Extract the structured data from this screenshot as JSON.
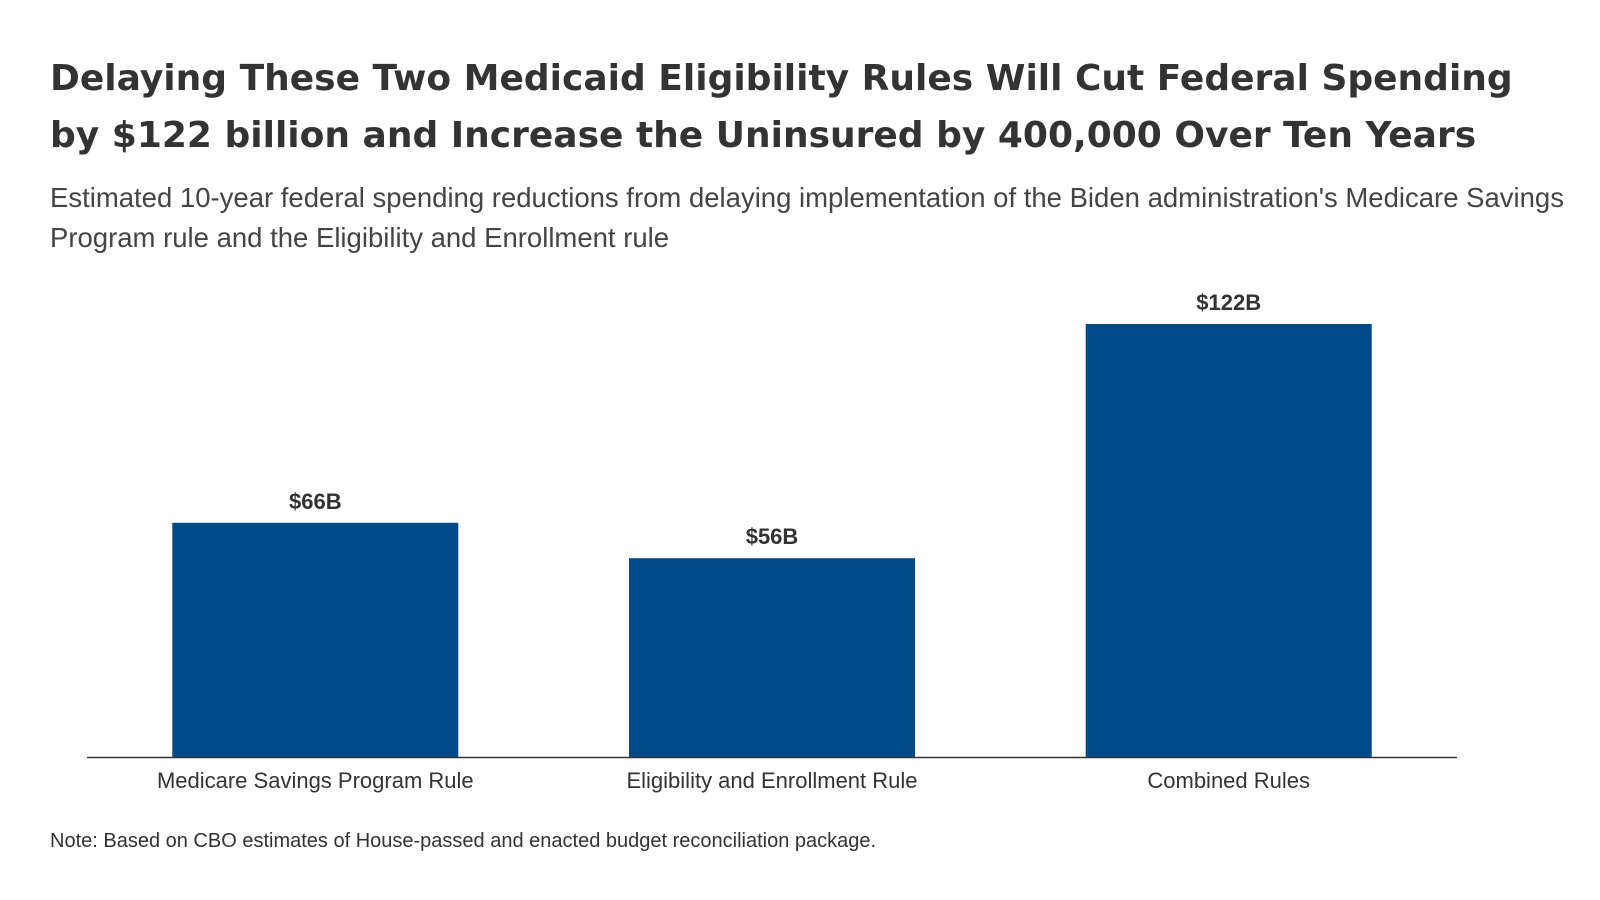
{
  "title": "Delaying These Two Medicaid Eligibility Rules Will Cut Federal Spending by $122 billion and Increase the Uninsured by 400,000 Over Ten Years",
  "subtitle": "Estimated 10-year federal spending reductions from delaying implementation of the Biden administration's Medicare Savings Program rule and the Eligibility and Enrollment rule",
  "note": "Note: Based on CBO estimates of House-passed and enacted budget reconciliation package.",
  "colors": {
    "bar": "#004b87",
    "axis": "#333333",
    "text": "#333333"
  },
  "chart_data": {
    "type": "bar",
    "categories": [
      "Medicare Savings Program Rule",
      "Eligibility and Enrollment Rule",
      "Combined Rules"
    ],
    "values": [
      66,
      56,
      122
    ],
    "value_labels": [
      "$66B",
      "$56B",
      "$122B"
    ],
    "ylim": [
      0,
      122
    ],
    "xlabel": "",
    "ylabel": "",
    "grid": false,
    "legend": "none"
  }
}
